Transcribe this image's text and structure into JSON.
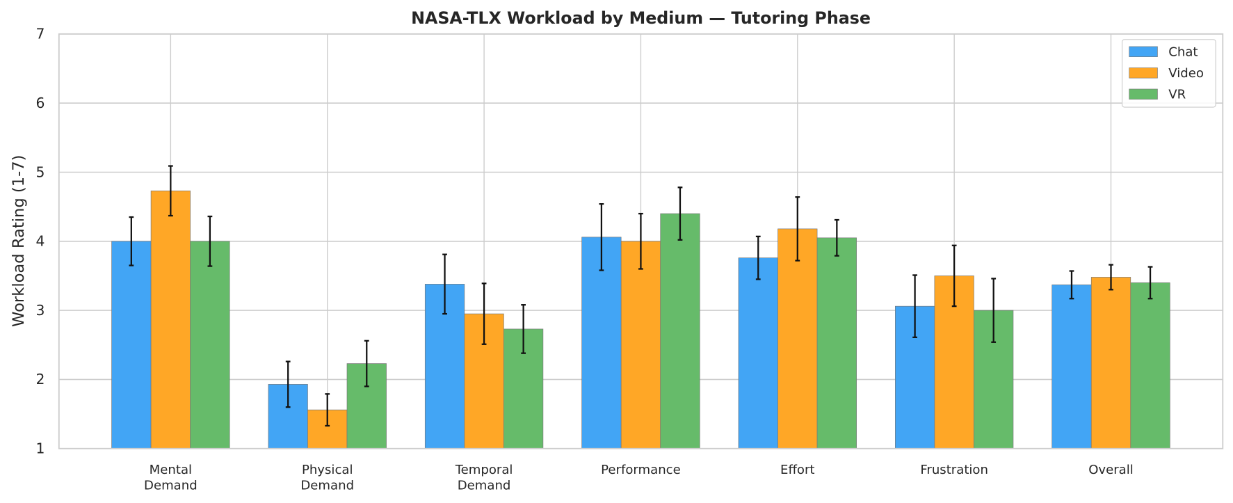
{
  "chart_data": {
    "type": "bar",
    "title": "NASA-TLX Workload by Medium — Tutoring Phase",
    "xlabel": "",
    "ylabel": "Workload Rating (1-7)",
    "ylim": [
      1,
      7
    ],
    "yticks": [
      "1",
      "2",
      "3",
      "4",
      "5",
      "6",
      "7"
    ],
    "grid": true,
    "legend_position": "top-right",
    "categories": [
      "Mental\nDemand",
      "Physical\nDemand",
      "Temporal\nDemand",
      "Performance",
      "Effort",
      "Frustration",
      "Overall"
    ],
    "series": [
      {
        "name": "Chat",
        "color": "#42A5F5",
        "values": [
          4.0,
          1.93,
          3.38,
          4.06,
          3.76,
          3.06,
          3.37
        ],
        "errors": [
          0.35,
          0.33,
          0.43,
          0.48,
          0.31,
          0.45,
          0.2
        ]
      },
      {
        "name": "Video",
        "color": "#FFA726",
        "values": [
          4.73,
          1.56,
          2.95,
          4.0,
          4.18,
          3.5,
          3.48
        ],
        "errors": [
          0.36,
          0.23,
          0.44,
          0.4,
          0.46,
          0.44,
          0.18
        ]
      },
      {
        "name": "VR",
        "color": "#66BB6A",
        "values": [
          4.0,
          2.23,
          2.73,
          4.4,
          4.05,
          3.0,
          3.4
        ],
        "errors": [
          0.36,
          0.33,
          0.35,
          0.38,
          0.26,
          0.46,
          0.23
        ]
      }
    ]
  }
}
